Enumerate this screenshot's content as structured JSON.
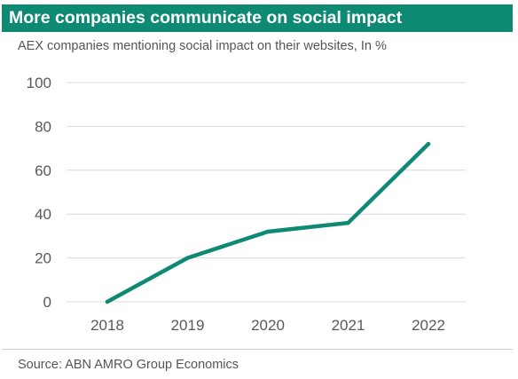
{
  "header": {
    "title": "More companies communicate on social impact"
  },
  "footer": {
    "source": "Source: ABN AMRO Group Economics"
  },
  "colors": {
    "title_bar": "#0e8a74",
    "line": "#0e8a74",
    "grid": "#d9d9d9",
    "tick_text": "#595959"
  },
  "chart_data": {
    "type": "line",
    "title": "More companies communicate on social impact",
    "subtitle": "AEX companies mentioning social impact on their websites, In %",
    "xlabel": "",
    "ylabel": "",
    "categories": [
      "2018",
      "2019",
      "2020",
      "2021",
      "2022"
    ],
    "series": [
      {
        "values": [
          0,
          20,
          32,
          36,
          72
        ]
      }
    ],
    "ylim": [
      0,
      100
    ],
    "yticks": [
      "0",
      "20",
      "40",
      "60",
      "80",
      "100"
    ],
    "grid": true,
    "legend": "none"
  }
}
